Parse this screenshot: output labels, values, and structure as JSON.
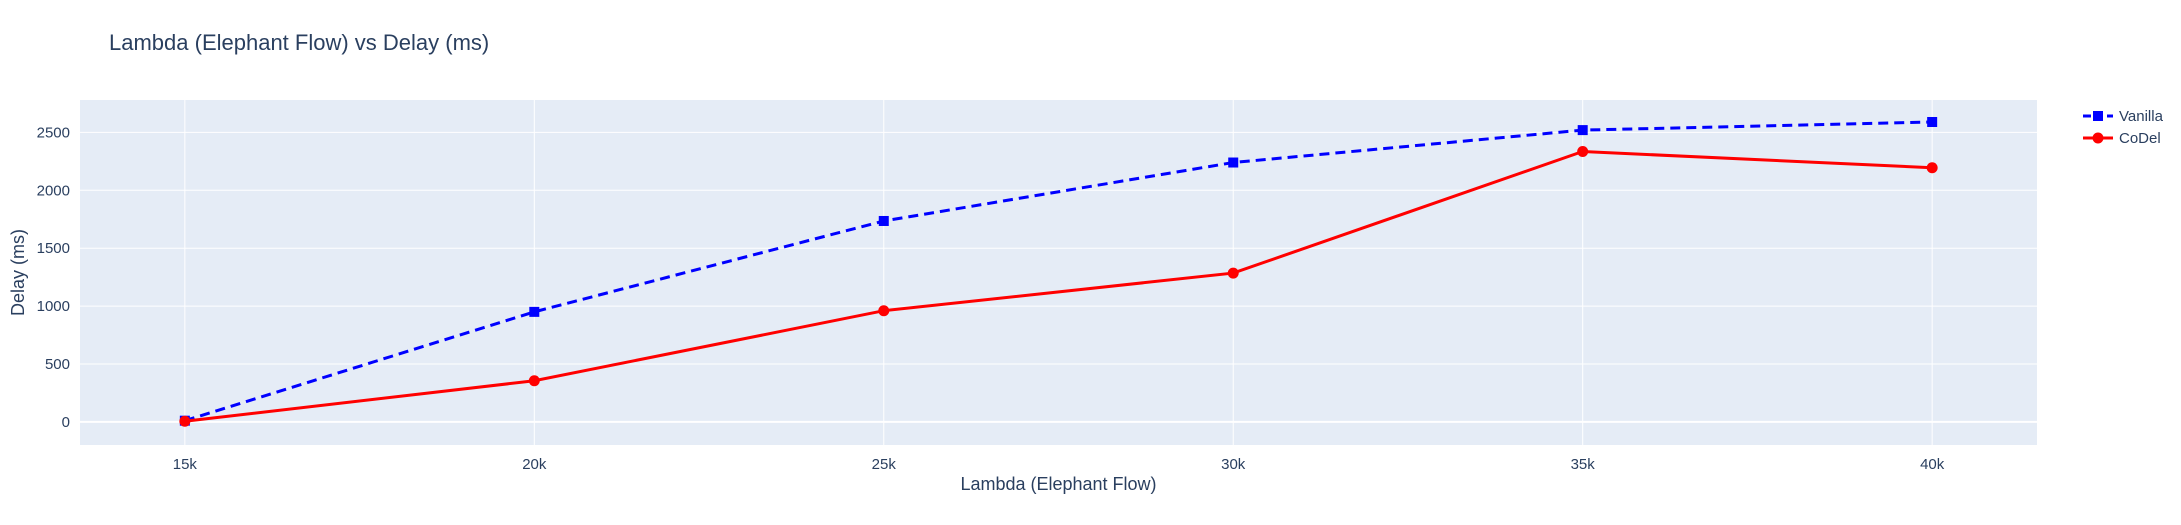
{
  "chart_data": {
    "type": "line",
    "title": "Lambda (Elephant Flow) vs Delay (ms)",
    "xlabel": "Lambda (Elephant Flow)",
    "ylabel": "Delay (ms)",
    "x": [
      15000,
      20000,
      25000,
      30000,
      35000,
      40000
    ],
    "x_tick_values": [
      15000,
      20000,
      25000,
      30000,
      35000,
      40000
    ],
    "x_tick_labels": [
      "15k",
      "20k",
      "25k",
      "30k",
      "35k",
      "40k"
    ],
    "y_tick_values": [
      0,
      500,
      1000,
      1500,
      2000,
      2500
    ],
    "y_tick_labels": [
      "0",
      "500",
      "1000",
      "1500",
      "2000",
      "2500"
    ],
    "xlim": [
      13500,
      41500
    ],
    "ylim": [
      -200,
      2780
    ],
    "grid": true,
    "legend_position": "top-right",
    "plot_background": "#e5ecf6",
    "grid_color": "#ffffff",
    "series": [
      {
        "name": "Vanilla",
        "values": [
          10,
          950,
          1735,
          2240,
          2520,
          2590
        ],
        "color": "#0000ff",
        "line_style": "dash",
        "marker": "square"
      },
      {
        "name": "CoDel",
        "values": [
          5,
          355,
          960,
          1285,
          2335,
          2195
        ],
        "color": "#ff0000",
        "line_style": "solid",
        "marker": "circle"
      }
    ]
  }
}
